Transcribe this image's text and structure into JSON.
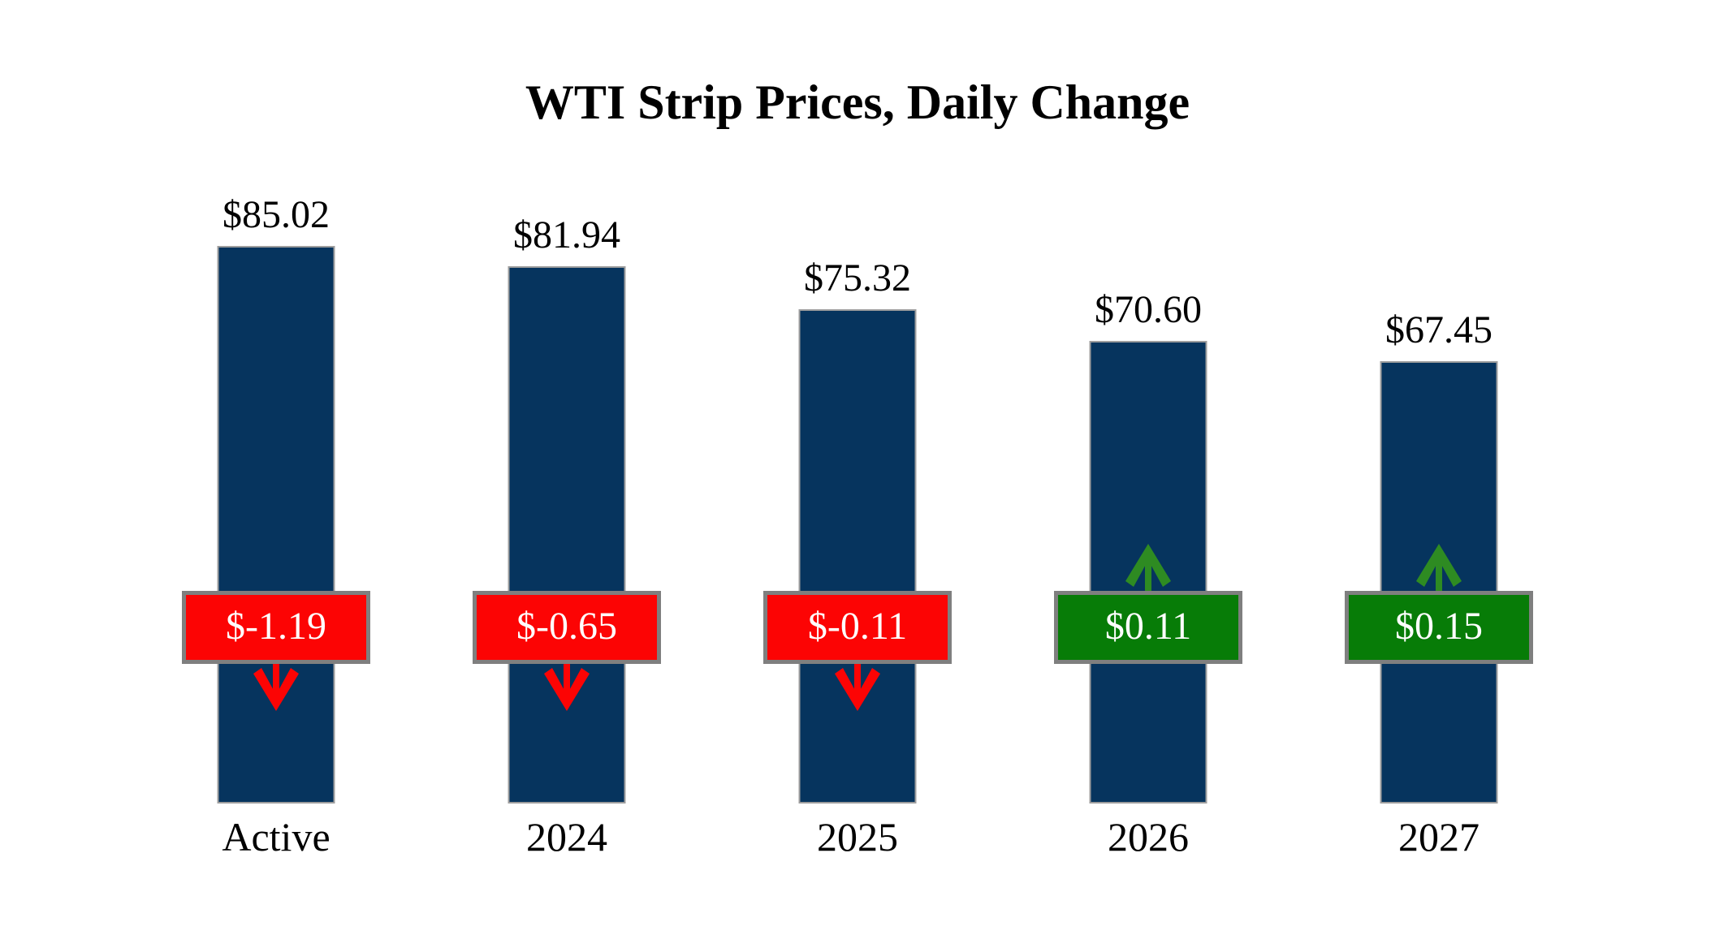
{
  "chart_data": {
    "type": "bar",
    "title": "WTI Strip Prices, Daily Change",
    "categories": [
      "Active",
      "2024",
      "2025",
      "2026",
      "2027"
    ],
    "values": [
      85.02,
      81.94,
      75.32,
      70.6,
      67.45
    ],
    "price_labels": [
      "$85.02",
      "$81.94",
      "$75.32",
      "$70.60",
      "$67.45"
    ],
    "daily_changes": [
      -1.19,
      -0.65,
      -0.11,
      0.11,
      0.15
    ],
    "change_labels": [
      "$-1.19",
      "$-0.65",
      "$-0.11",
      "$0.11",
      "$0.15"
    ],
    "directions": [
      "down",
      "down",
      "down",
      "up",
      "up"
    ],
    "xlabel": "",
    "ylabel": "",
    "ylim": [
      0,
      90
    ],
    "grid": false,
    "legend": "none",
    "axes_visible": false,
    "colors": {
      "background": "#ffffff",
      "bar": "#06345E",
      "bar_border": "#9E9E9E",
      "badge_border": "#7F7F7F",
      "negative_badge": "#FC0404",
      "positive_badge": "#077C07",
      "down_arrow": "#FC0404",
      "up_arrow": "#2E8B22",
      "badge_text": "#FFFFFF",
      "label_text": "#000000"
    }
  }
}
